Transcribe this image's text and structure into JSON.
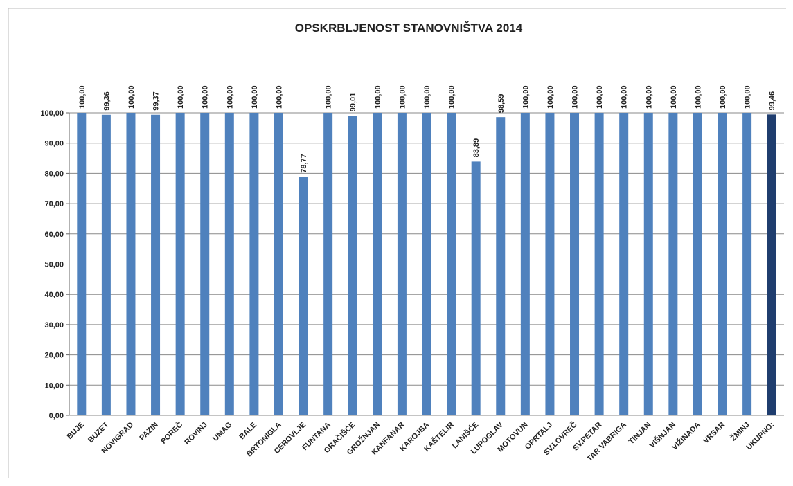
{
  "chart_data": {
    "type": "bar",
    "title": "OPSKRBLJENOST STANOVNIŠTVA 2014",
    "categories": [
      "BUJE",
      "BUZET",
      "NOVIGRAD",
      "PAZIN",
      "POREČ",
      "ROVINJ",
      "UMAG",
      "BALE",
      "BRTONIGLA",
      "CEROVLJE",
      "FUNTANA",
      "GRAČIŠĆE",
      "GROŽNJAN",
      "KANFANAR",
      "KAROJBA",
      "KAŠTELIR",
      "LANIŠĆE",
      "LUPOGLAV",
      "MOTOVUN",
      "OPRTALJ",
      "SV.LOVREČ",
      "SV.PETAR",
      "TAR VABRIGA",
      "TINJAN",
      "VIŠNJAN",
      "VIŽINADA",
      "VRSAR",
      "ŽMINJ",
      "UKUPNO:"
    ],
    "values": [
      100,
      99.36,
      100,
      99.37,
      100,
      100,
      100,
      100,
      100,
      78.77,
      100,
      99.01,
      100,
      100,
      100,
      100,
      83.89,
      98.59,
      100,
      100,
      100,
      100,
      100,
      100,
      100,
      100,
      100,
      100,
      99.46
    ],
    "value_labels": [
      "100,00",
      "99,36",
      "100,00",
      "99,37",
      "100,00",
      "100,00",
      "100,00",
      "100,00",
      "100,00",
      "78,77",
      "100,00",
      "99,01",
      "100,00",
      "100,00",
      "100,00",
      "100,00",
      "83,89",
      "98,59",
      "100,00",
      "100,00",
      "100,00",
      "100,00",
      "100,00",
      "100,00",
      "100,00",
      "100,00",
      "100,00",
      "100,00",
      "99,46"
    ],
    "colors": [
      "#4f81bd",
      "#4f81bd",
      "#4f81bd",
      "#4f81bd",
      "#4f81bd",
      "#4f81bd",
      "#4f81bd",
      "#4f81bd",
      "#4f81bd",
      "#4f81bd",
      "#4f81bd",
      "#4f81bd",
      "#4f81bd",
      "#4f81bd",
      "#4f81bd",
      "#4f81bd",
      "#4f81bd",
      "#4f81bd",
      "#4f81bd",
      "#4f81bd",
      "#4f81bd",
      "#4f81bd",
      "#4f81bd",
      "#4f81bd",
      "#4f81bd",
      "#4f81bd",
      "#4f81bd",
      "#4f81bd",
      "#1f3d6e"
    ],
    "ylim": [
      0,
      100
    ],
    "yticks": [
      {
        "value": 0,
        "label": "0,00"
      },
      {
        "value": 10,
        "label": "10,00"
      },
      {
        "value": 20,
        "label": "20,00"
      },
      {
        "value": 30,
        "label": "30,00"
      },
      {
        "value": 40,
        "label": "40,00"
      },
      {
        "value": 50,
        "label": "50,00"
      },
      {
        "value": 60,
        "label": "60,00"
      },
      {
        "value": 70,
        "label": "70,00"
      },
      {
        "value": 80,
        "label": "80,00"
      },
      {
        "value": 90,
        "label": "90,00"
      },
      {
        "value": 100,
        "label": "100,00"
      }
    ],
    "grid": true
  }
}
